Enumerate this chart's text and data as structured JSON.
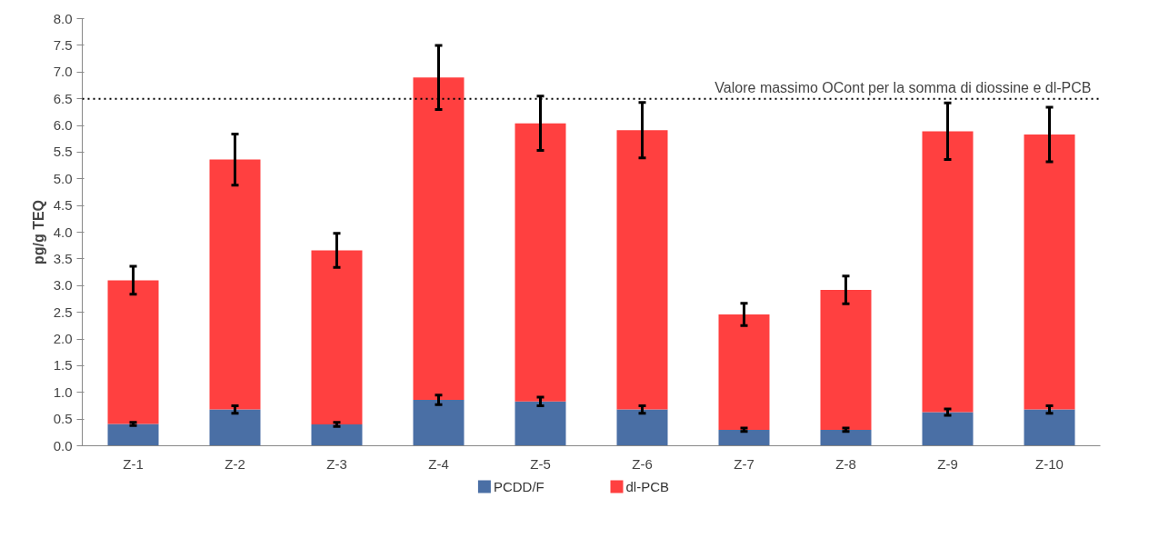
{
  "chart_data": {
    "type": "bar",
    "stacked": true,
    "ylabel": "pg/g TEQ",
    "categories": [
      "Z-1",
      "Z-2",
      "Z-3",
      "Z-4",
      "Z-5",
      "Z-6",
      "Z-7",
      "Z-8",
      "Z-9",
      "Z-10"
    ],
    "series": [
      {
        "name": "PCDD/F",
        "color": "#4a6fa5",
        "values": [
          0.41,
          0.68,
          0.4,
          0.86,
          0.83,
          0.68,
          0.3,
          0.3,
          0.63,
          0.68
        ],
        "errors": [
          0.03,
          0.07,
          0.04,
          0.09,
          0.08,
          0.07,
          0.03,
          0.03,
          0.06,
          0.07
        ]
      },
      {
        "name": "dl-PCB",
        "color": "#ff4040",
        "values": [
          2.69,
          4.68,
          3.26,
          6.04,
          5.21,
          5.23,
          2.16,
          2.62,
          5.26,
          5.15
        ],
        "errors": [
          0.26,
          0.48,
          0.32,
          0.6,
          0.51,
          0.52,
          0.21,
          0.26,
          0.53,
          0.51
        ]
      }
    ],
    "ylim": [
      0,
      8
    ],
    "yticks": [
      {
        "value": 0,
        "label": "0.0"
      },
      {
        "value": 0.5,
        "label": "0.5"
      },
      {
        "value": 1,
        "label": "1.0"
      },
      {
        "value": 1.5,
        "label": "1.5"
      },
      {
        "value": 2,
        "label": "2.0"
      },
      {
        "value": 2.5,
        "label": "2.5"
      },
      {
        "value": 3,
        "label": "3.0"
      },
      {
        "value": 3.5,
        "label": "3.5"
      },
      {
        "value": 4,
        "label": "4.0"
      },
      {
        "value": 4.5,
        "label": "4.5"
      },
      {
        "value": 5,
        "label": "5.0"
      },
      {
        "value": 5.5,
        "label": "5.5"
      },
      {
        "value": 6,
        "label": "6.0"
      },
      {
        "value": 6.5,
        "label": "6.5"
      },
      {
        "value": 7,
        "label": "7.0"
      },
      {
        "value": 7.5,
        "label": "7.5"
      },
      {
        "value": 8,
        "label": "8.0"
      }
    ],
    "ref_lines": [
      {
        "axis": "y",
        "value": 6.5,
        "label": "Valore massimo OCont per la  somma di diossine e dl-PCB",
        "color": "#000000",
        "line_style": "dotted"
      }
    ],
    "grid": false,
    "legend": "bottom"
  }
}
